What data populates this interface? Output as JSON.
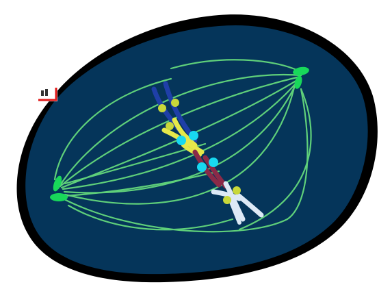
{
  "colors": {
    "background": "#ffffff",
    "halo": "#000000",
    "cell": "#05355a",
    "spindle": "#5fd07a",
    "centrosome": "#18d85a",
    "kinetochore": "#18d8f0",
    "centromere": "#c8d83a",
    "chromosome_dark_blue": "#1f3fa8",
    "chromosome_yellow": "#e6e84a",
    "chromosome_red": "#8a2a48",
    "chromosome_white": "#dde9f6",
    "corner_frame": "#e01818"
  },
  "icons": {
    "corner_widget": "corner-frame-icon"
  }
}
